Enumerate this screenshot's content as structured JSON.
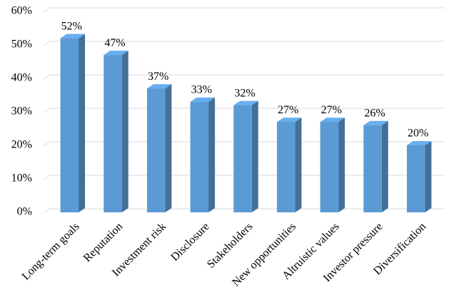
{
  "chart_data": {
    "type": "bar",
    "categories": [
      "Long-term goals",
      "Reputation",
      "Investment risk",
      "Disclosure",
      "Stakeholders",
      "New opportunities",
      "Altruistic values",
      "Investor pressure",
      "Diversification"
    ],
    "values": [
      52,
      47,
      37,
      33,
      32,
      27,
      27,
      26,
      20
    ],
    "value_labels": [
      "52%",
      "47%",
      "37%",
      "33%",
      "32%",
      "27%",
      "27%",
      "26%",
      "20%"
    ],
    "color": "#5b9bd5",
    "ylim": [
      0,
      60
    ],
    "yticks": [
      {
        "value": 0,
        "label": "0%"
      },
      {
        "value": 10,
        "label": "10%"
      },
      {
        "value": 20,
        "label": "20%"
      },
      {
        "value": 30,
        "label": "30%"
      },
      {
        "value": 40,
        "label": "40%"
      },
      {
        "value": 50,
        "label": "50%"
      },
      {
        "value": 60,
        "label": "60%"
      }
    ],
    "grid": true
  }
}
